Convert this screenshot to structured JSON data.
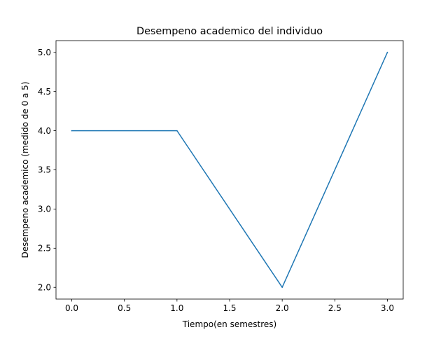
{
  "chart_data": {
    "type": "line",
    "title": "Desempeno academico del individuo",
    "xlabel": "Tiempo(en semestres)",
    "ylabel": "Desempeno academico (medido de 0 a 5)",
    "x": [
      0.0,
      1.0,
      2.0,
      3.0
    ],
    "series": [
      {
        "values": [
          4.0,
          4.0,
          2.0,
          5.0
        ]
      }
    ],
    "xlim": [
      -0.15,
      3.15
    ],
    "ylim": [
      1.85,
      5.15
    ],
    "xticks": [
      "0.0",
      "0.5",
      "1.0",
      "1.5",
      "2.0",
      "2.5",
      "3.0"
    ],
    "yticks": [
      "2.0",
      "2.5",
      "3.0",
      "3.5",
      "4.0",
      "4.5",
      "5.0"
    ],
    "grid": false,
    "line_color": "#1f77b4"
  }
}
